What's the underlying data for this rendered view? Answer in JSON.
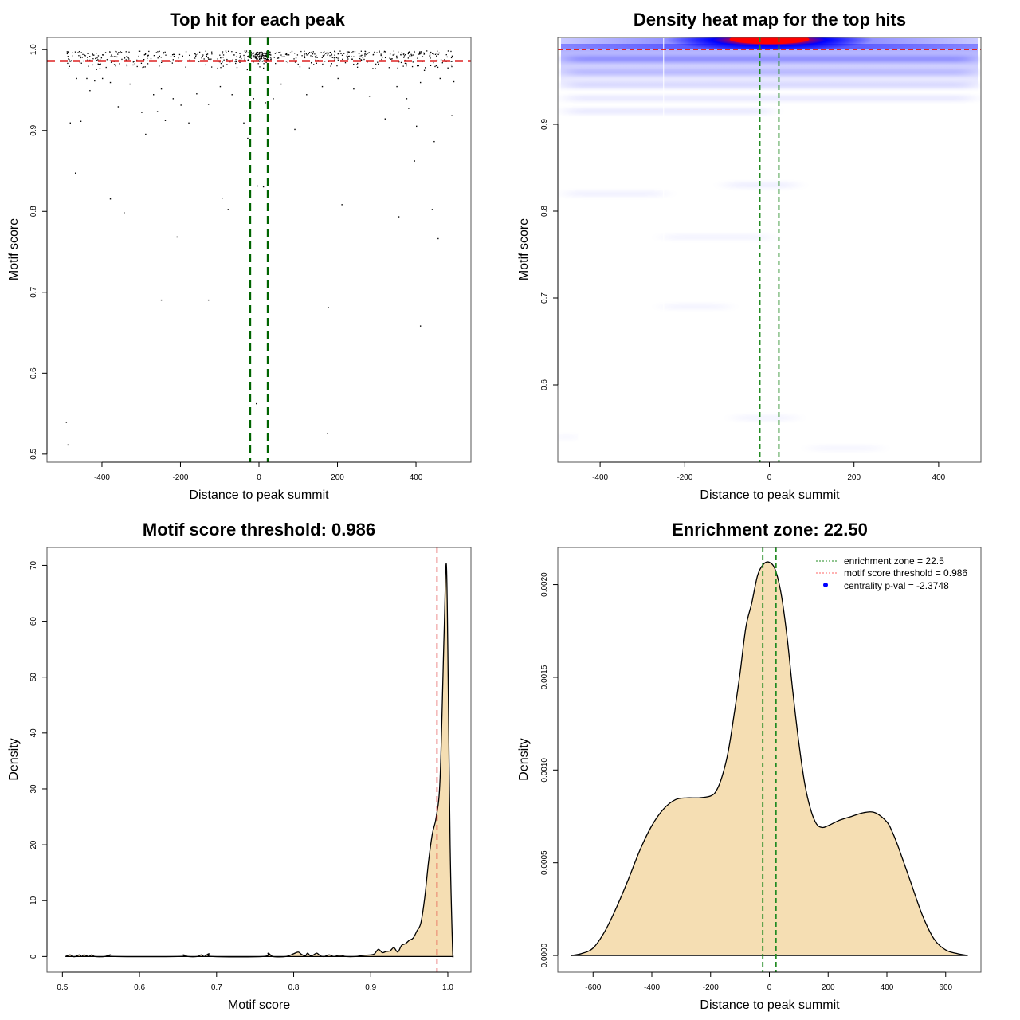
{
  "chart_data": [
    {
      "id": "scatter",
      "type": "scatter",
      "title": "Top hit for each peak",
      "xlabel": "Distance to peak summit",
      "ylabel": "Motif score",
      "xlim": [
        -540,
        540
      ],
      "ylim": [
        0.49,
        1.015
      ],
      "xticks": [
        -400,
        -200,
        0,
        200,
        400
      ],
      "xtick_labels": [
        "-400",
        "-200",
        "0",
        "200",
        "400"
      ],
      "yticks": [
        0.5,
        0.6,
        0.7,
        0.8,
        0.9,
        1.0
      ],
      "ytick_labels": [
        "0.5",
        "0.6",
        "0.7",
        "0.8",
        "0.9",
        "1.0"
      ],
      "threshold_y": 0.986,
      "zone_x": [
        -22.5,
        22.5
      ],
      "threshold_color": "#dd2222",
      "zone_color": "#006400",
      "dense_band": {
        "x_range": [
          -490,
          495
        ],
        "y_range": [
          0.975,
          0.999
        ],
        "count": 520,
        "center_cluster": {
          "x_range": [
            -30,
            30
          ],
          "count": 120
        }
      },
      "points": [
        [
          -482,
          0.91
        ],
        [
          -466,
          0.965
        ],
        [
          -469,
          0.848
        ],
        [
          -455,
          0.912
        ],
        [
          -440,
          0.965
        ],
        [
          -432,
          0.95
        ],
        [
          -420,
          0.962
        ],
        [
          -400,
          0.965
        ],
        [
          -380,
          0.96
        ],
        [
          -360,
          0.93
        ],
        [
          -330,
          0.958
        ],
        [
          -300,
          0.923
        ],
        [
          -290,
          0.896
        ],
        [
          -270,
          0.945
        ],
        [
          -260,
          0.924
        ],
        [
          -250,
          0.952
        ],
        [
          -240,
          0.913
        ],
        [
          -220,
          0.94
        ],
        [
          -200,
          0.932
        ],
        [
          -180,
          0.91
        ],
        [
          -160,
          0.946
        ],
        [
          -130,
          0.933
        ],
        [
          -100,
          0.955
        ],
        [
          -70,
          0.945
        ],
        [
          -40,
          0.91
        ],
        [
          -30,
          0.891
        ],
        [
          -15,
          0.94
        ],
        [
          15,
          0.935
        ],
        [
          35,
          0.94
        ],
        [
          55,
          0.958
        ],
        [
          90,
          0.902
        ],
        [
          120,
          0.945
        ],
        [
          160,
          0.955
        ],
        [
          200,
          0.965
        ],
        [
          240,
          0.952
        ],
        [
          280,
          0.943
        ],
        [
          320,
          0.915
        ],
        [
          350,
          0.955
        ],
        [
          375,
          0.94
        ],
        [
          380,
          0.928
        ],
        [
          400,
          0.906
        ],
        [
          410,
          0.96
        ],
        [
          420,
          0.975
        ],
        [
          445,
          0.887
        ],
        [
          460,
          0.965
        ],
        [
          480,
          0.978
        ],
        [
          495,
          0.961
        ],
        [
          490,
          0.919
        ],
        [
          395,
          0.863
        ],
        [
          -380,
          0.816
        ],
        [
          -345,
          0.799
        ],
        [
          -95,
          0.817
        ],
        [
          -80,
          0.803
        ],
        [
          -5,
          0.832
        ],
        [
          10,
          0.831
        ],
        [
          210,
          0.809
        ],
        [
          355,
          0.794
        ],
        [
          440,
          0.803
        ],
        [
          -210,
          0.769
        ],
        [
          455,
          0.767
        ],
        [
          -250,
          0.691
        ],
        [
          -130,
          0.691
        ],
        [
          175,
          0.682
        ],
        [
          410,
          0.659
        ],
        [
          -492,
          0.54
        ],
        [
          -488,
          0.512
        ],
        [
          -8,
          0.563
        ],
        [
          173,
          0.526
        ]
      ]
    },
    {
      "id": "heatmap",
      "type": "heatmap",
      "title": "Density heat map for the top hits",
      "xlabel": "Distance to peak summit",
      "ylabel": "Motif score",
      "xlim": [
        -500,
        500
      ],
      "ylim": [
        0.511,
        1.0
      ],
      "xticks": [
        -400,
        -200,
        0,
        200,
        400
      ],
      "xtick_labels": [
        "-400",
        "-200",
        "0",
        "200",
        "400"
      ],
      "yticks": [
        0.6,
        0.7,
        0.8,
        0.9
      ],
      "ytick_labels": [
        "0.6",
        "0.7",
        "0.8",
        "0.9"
      ],
      "threshold_y": 0.986,
      "zone_x": [
        -22.5,
        22.5
      ],
      "threshold_color": "#dd2222",
      "zone_color": "#228b22",
      "colors": {
        "low": "#ffffff",
        "mid": "#0000ff",
        "high": "#ff0000"
      },
      "hotspot": {
        "x": 0,
        "y": 0.997,
        "label": "highest density"
      },
      "faint_bands": [
        {
          "y": 0.975,
          "x_range": [
            -480,
            480
          ],
          "intensity": 0.25
        },
        {
          "y": 0.96,
          "x_range": [
            -480,
            480
          ],
          "intensity": 0.15
        },
        {
          "y": 0.945,
          "x_range": [
            -480,
            480
          ],
          "intensity": 0.1
        },
        {
          "y": 0.93,
          "x_range": [
            -480,
            480
          ],
          "intensity": 0.08
        },
        {
          "y": 0.915,
          "x_range": [
            -480,
            0
          ],
          "intensity": 0.08
        },
        {
          "y": 0.83,
          "x_range": [
            -100,
            60
          ],
          "intensity": 0.06
        },
        {
          "y": 0.82,
          "x_range": [
            -480,
            -250
          ],
          "intensity": 0.05
        },
        {
          "y": 0.77,
          "x_range": [
            -250,
            0
          ],
          "intensity": 0.04
        },
        {
          "y": 0.69,
          "x_range": [
            -250,
            -100
          ],
          "intensity": 0.04
        },
        {
          "y": 0.562,
          "x_range": [
            -80,
            60
          ],
          "intensity": 0.04
        },
        {
          "y": 0.54,
          "x_range": [
            -500,
            -460
          ],
          "intensity": 0.04
        },
        {
          "y": 0.527,
          "x_range": [
            100,
            260
          ],
          "intensity": 0.03
        }
      ]
    },
    {
      "id": "score-density",
      "type": "area",
      "title": "Motif score threshold: 0.986",
      "xlabel": "Motif score",
      "ylabel": "Density",
      "xlim": [
        0.48,
        1.03
      ],
      "ylim": [
        -2.8,
        73.2
      ],
      "xticks": [
        0.5,
        0.6,
        0.7,
        0.8,
        0.9,
        1.0
      ],
      "xtick_labels": [
        "0.5",
        "0.6",
        "0.7",
        "0.8",
        "0.9",
        "1.0"
      ],
      "yticks": [
        0,
        10,
        20,
        30,
        40,
        50,
        60,
        70
      ],
      "ytick_labels": [
        "0",
        "10",
        "20",
        "30",
        "40",
        "50",
        "60",
        "70"
      ],
      "threshold_x": 0.986,
      "threshold_color": "#dd2222",
      "fill_color": "#f5deb3",
      "x": [
        0.504,
        0.51,
        0.513,
        0.517,
        0.522,
        0.525,
        0.528,
        0.534,
        0.538,
        0.542,
        0.555,
        0.562,
        0.568,
        0.65,
        0.657,
        0.663,
        0.675,
        0.68,
        0.684,
        0.69,
        0.695,
        0.76,
        0.767,
        0.773,
        0.79,
        0.8,
        0.806,
        0.81,
        0.815,
        0.818,
        0.822,
        0.826,
        0.83,
        0.835,
        0.84,
        0.846,
        0.852,
        0.858,
        0.862,
        0.868,
        0.88,
        0.89,
        0.9,
        0.905,
        0.91,
        0.915,
        0.92,
        0.925,
        0.93,
        0.935,
        0.94,
        0.945,
        0.95,
        0.955,
        0.96,
        0.965,
        0.97,
        0.975,
        0.98,
        0.985,
        0.99,
        0.995,
        0.998,
        1.0,
        1.003,
        1.006,
        1.007
      ],
      "y": [
        0,
        0.3,
        0,
        0,
        0.3,
        0,
        0.3,
        0,
        0.3,
        0,
        0,
        0.3,
        0,
        0,
        0.3,
        0,
        0,
        0.3,
        0,
        0.5,
        0,
        0,
        0.6,
        0,
        0,
        0.5,
        0.8,
        0.4,
        0.1,
        0.6,
        0.1,
        0.3,
        0.6,
        0.1,
        0,
        0.3,
        0,
        0.2,
        0.2,
        0,
        0,
        0.2,
        0.3,
        0.5,
        1.3,
        0.7,
        0.9,
        1.0,
        1.6,
        0.8,
        2.0,
        2.3,
        2.9,
        3.3,
        4.6,
        6.0,
        10.5,
        17.0,
        22.0,
        25.0,
        32.0,
        57.0,
        70.3,
        55.0,
        20.0,
        2.0,
        0
      ]
    },
    {
      "id": "distance-density",
      "type": "area",
      "title": "Enrichment zone: 22.50",
      "xlabel": "Distance to peak summit",
      "ylabel": "Density",
      "xlim": [
        -720,
        720
      ],
      "ylim": [
        -9e-05,
        0.0022
      ],
      "xticks": [
        -600,
        -400,
        -200,
        0,
        200,
        400,
        600
      ],
      "xtick_labels": [
        "-600",
        "-400",
        "-200",
        "0",
        "200",
        "400",
        "600"
      ],
      "yticks": [
        0,
        0.0005,
        0.001,
        0.0015,
        0.002
      ],
      "ytick_labels": [
        "0.0000",
        "0.0005",
        "0.0010",
        "0.0015",
        "0.0020"
      ],
      "zone_x": [
        -22.5,
        22.5
      ],
      "zone_color": "#228b22",
      "fill_color": "#f5deb3",
      "x": [
        -675,
        -640,
        -600,
        -560,
        -520,
        -480,
        -440,
        -400,
        -360,
        -320,
        -280,
        -240,
        -200,
        -180,
        -160,
        -140,
        -120,
        -100,
        -80,
        -60,
        -40,
        -20,
        0,
        20,
        40,
        60,
        80,
        100,
        120,
        140,
        160,
        180,
        200,
        240,
        280,
        320,
        360,
        400,
        420,
        440,
        480,
        520,
        560,
        600,
        640,
        675
      ],
      "y": [
        0,
        1e-05,
        4e-05,
        0.00013,
        0.00026,
        0.00041,
        0.00057,
        0.0007,
        0.00079,
        0.00084,
        0.00085,
        0.00085,
        0.00086,
        0.00089,
        0.00097,
        0.0011,
        0.0013,
        0.00152,
        0.00177,
        0.0019,
        0.00205,
        0.00211,
        0.00212,
        0.00208,
        0.00195,
        0.00172,
        0.00142,
        0.00115,
        0.00093,
        0.00079,
        0.00071,
        0.00069,
        0.0007,
        0.00073,
        0.00075,
        0.00077,
        0.00077,
        0.00072,
        0.00066,
        0.00058,
        0.0004,
        0.00022,
        9e-05,
        3e-05,
        1e-05,
        0
      ],
      "legend": {
        "placement": "top-right",
        "entries": [
          {
            "label": "enrichment zone = 22.5",
            "style": "dotted-line",
            "color": "#228b22"
          },
          {
            "label": "motif score threshold = 0.986",
            "style": "dotted-line",
            "color": "#ff6666"
          },
          {
            "label": "centrality p-val = -2.3748",
            "style": "point",
            "color": "#0000ff"
          }
        ]
      }
    }
  ]
}
